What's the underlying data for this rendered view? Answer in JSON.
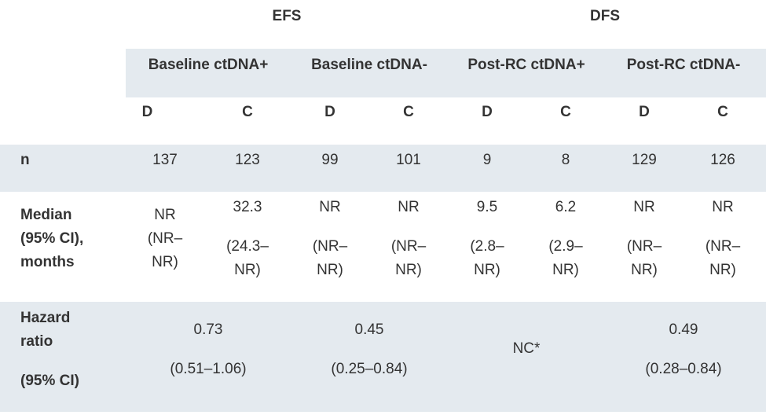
{
  "header": {
    "efs": "EFS",
    "dfs": "DFS"
  },
  "groups": [
    {
      "label": "Baseline ctDNA+"
    },
    {
      "label": "Baseline ctDNA-"
    },
    {
      "label": "Post-RC ctDNA+"
    },
    {
      "label": "Post-RC ctDNA-"
    }
  ],
  "arms": [
    "D",
    "C",
    "D",
    "C",
    "D",
    "C",
    "D",
    "C"
  ],
  "rows": {
    "n": {
      "label": "n",
      "values": [
        "137",
        "123",
        "99",
        "101",
        "9",
        "8",
        "129",
        "126"
      ]
    },
    "median": {
      "label_lines": [
        "Median",
        "(95% CI),",
        "months"
      ],
      "cells": [
        {
          "lines": [
            "NR",
            "(NR–",
            "NR)"
          ]
        },
        {
          "top": "32.3",
          "lines": [
            "(24.3–",
            "NR)"
          ]
        },
        {
          "top": "NR",
          "lines": [
            "(NR–",
            "NR)"
          ]
        },
        {
          "top": "NR",
          "lines": [
            "(NR–",
            "NR)"
          ]
        },
        {
          "top": "9.5",
          "lines": [
            "(2.8–",
            "NR)"
          ]
        },
        {
          "top": "6.2",
          "lines": [
            "(2.9–",
            "NR)"
          ]
        },
        {
          "top": "NR",
          "lines": [
            "(NR–",
            "NR)"
          ]
        },
        {
          "top": "NR",
          "lines": [
            "(NR–",
            "NR)"
          ]
        }
      ]
    },
    "hazard": {
      "label_lines": [
        "Hazard",
        "ratio",
        "(95% CI)"
      ],
      "cells": [
        {
          "value": "0.73",
          "ci": "(0.51–1.06)"
        },
        {
          "value": "0.45",
          "ci": "(0.25–0.84)"
        },
        {
          "value": "NC*"
        },
        {
          "value": "0.49",
          "ci": "(0.28–0.84)"
        }
      ]
    }
  }
}
